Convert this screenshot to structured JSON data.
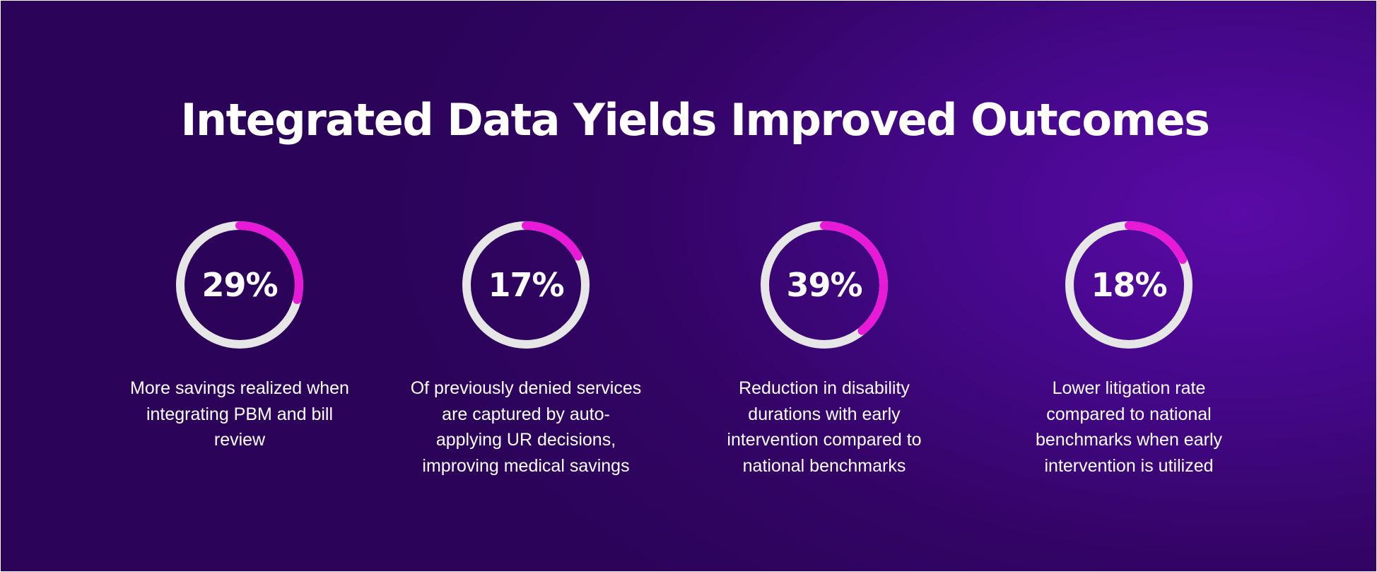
{
  "colors": {
    "accent": "#e81ad8",
    "track": "#e6e6e6",
    "text": "#ffffff",
    "background": "#3a0675"
  },
  "chart_data": {
    "type": "pie",
    "title": "Integrated Data Yields Improved Outcomes",
    "items": [
      {
        "label": "29%",
        "value": 29,
        "description": "More savings realized when integrating PBM and bill review"
      },
      {
        "label": "17%",
        "value": 17,
        "description": "Of previously denied services are captured by auto-applying UR decisions, improving medical savings"
      },
      {
        "label": "39%",
        "value": 39,
        "description": "Reduction in disability durations with early intervention compared to national benchmarks"
      },
      {
        "label": "18%",
        "value": 18,
        "description": "Lower litigation rate compared to national benchmarks when early intervention is utilized"
      }
    ]
  }
}
